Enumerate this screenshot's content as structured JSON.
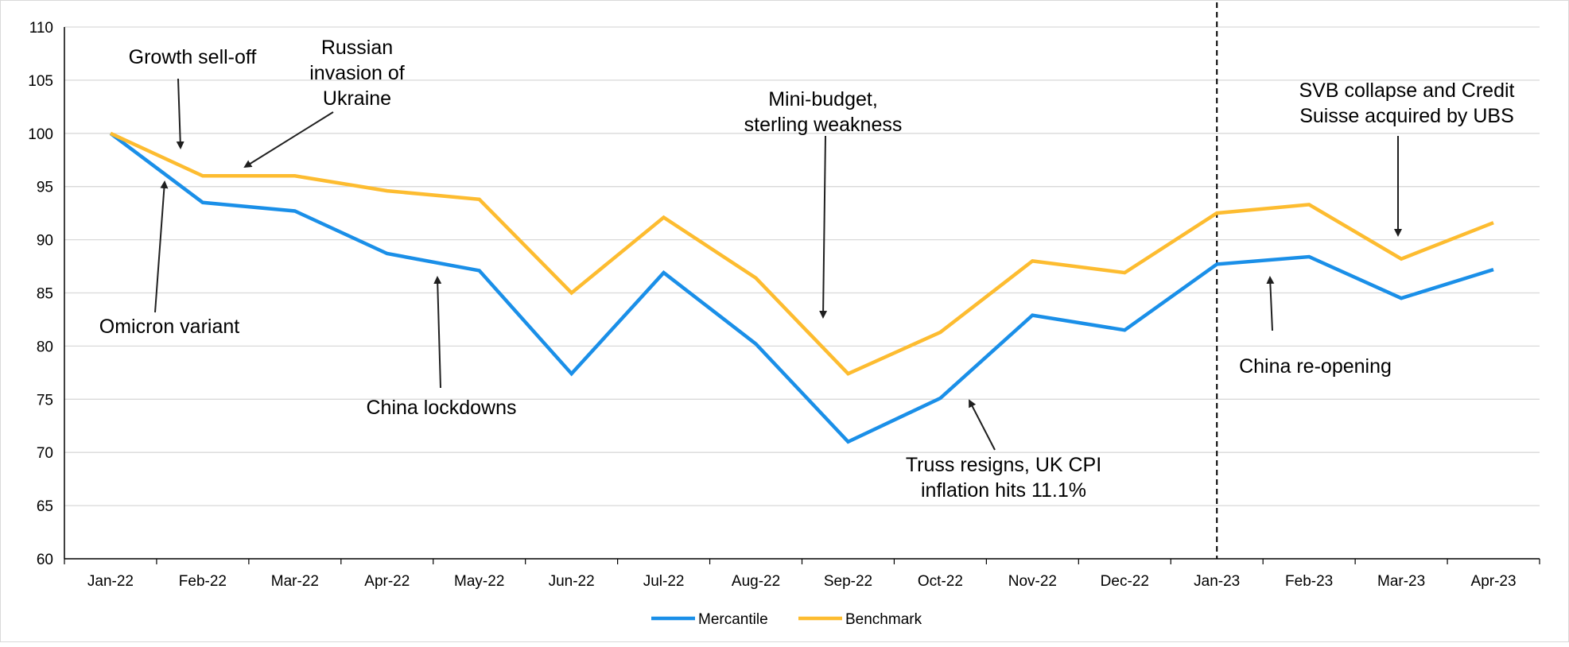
{
  "chart_data": {
    "type": "line",
    "categories": [
      "Jan-22",
      "Feb-22",
      "Mar-22",
      "Apr-22",
      "May-22",
      "Jun-22",
      "Jul-22",
      "Aug-22",
      "Sep-22",
      "Oct-22",
      "Nov-22",
      "Dec-22",
      "Jan-23",
      "Feb-23",
      "Mar-23",
      "Apr-23"
    ],
    "series": [
      {
        "name": "Mercantile",
        "color": "#1a8fe8",
        "values": [
          100,
          93.5,
          92.7,
          88.7,
          87.1,
          77.4,
          86.9,
          80.2,
          71.0,
          75.1,
          82.9,
          81.5,
          87.7,
          88.4,
          84.5,
          87.2
        ]
      },
      {
        "name": "Benchmark",
        "color": "#fdbc30",
        "values": [
          100,
          96.0,
          96.0,
          94.6,
          93.8,
          85.0,
          92.1,
          86.4,
          77.4,
          81.3,
          88.0,
          86.9,
          92.5,
          93.3,
          88.2,
          91.6
        ]
      }
    ],
    "ylim": [
      60,
      110
    ],
    "yticks": [
      60,
      65,
      70,
      75,
      80,
      85,
      90,
      95,
      100,
      105,
      110
    ],
    "grid": true,
    "legend": "bottom-center",
    "divider_at": "Jan-23",
    "annotations": [
      {
        "lines": [
          "Growth sell-off"
        ],
        "anchor": "middle"
      },
      {
        "lines": [
          "Russian",
          "invasion of",
          "Ukraine"
        ],
        "anchor": "middle"
      },
      {
        "lines": [
          "Omicron variant"
        ],
        "anchor": "middle"
      },
      {
        "lines": [
          "China lockdowns"
        ],
        "anchor": "middle"
      },
      {
        "lines": [
          "Mini-budget,",
          "sterling weakness"
        ],
        "anchor": "middle"
      },
      {
        "lines": [
          "Truss resigns, UK CPI",
          "inflation hits 11.1%"
        ],
        "anchor": "middle"
      },
      {
        "lines": [
          "China re-opening"
        ],
        "anchor": "middle"
      },
      {
        "lines": [
          "SVB collapse and Credit",
          "Suisse acquired by UBS"
        ],
        "anchor": "middle"
      }
    ]
  }
}
